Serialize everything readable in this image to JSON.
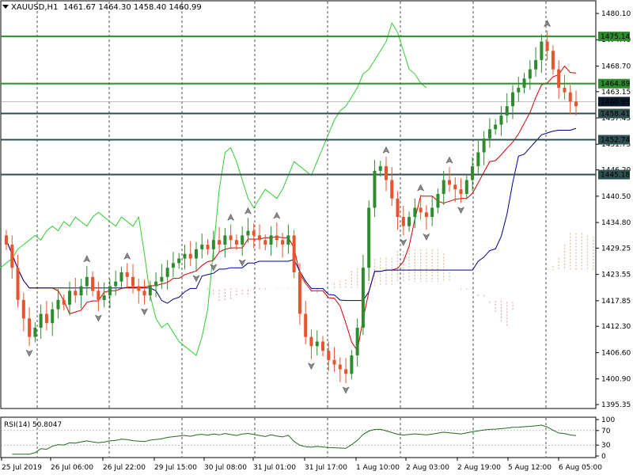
{
  "header": {
    "symbol_label": "XAUUSD,H1",
    "ohlc_label": "1461.67 1464.30 1458.40 1460.99",
    "menu_icon": "triangle-down-icon"
  },
  "price_axis": {
    "ticks": [
      "1480.10",
      "1474.40",
      "1468.70",
      "1463.15",
      "1457.45",
      "1451.75",
      "1446.20",
      "1440.50",
      "1434.80",
      "1429.25",
      "1423.55",
      "1417.85",
      "1412.30",
      "1406.60",
      "1400.90",
      "1395.35"
    ]
  },
  "levels": [
    {
      "value": 1475.14,
      "label": "1475.14",
      "color": "#2e8b2e"
    },
    {
      "value": 1464.89,
      "label": "1464.89",
      "color": "#2e8b2e"
    },
    {
      "value": 1458.41,
      "label": "1458.41",
      "color": "#2f4f4f"
    },
    {
      "value": 1452.74,
      "label": "1452.74",
      "color": "#2f4f4f"
    },
    {
      "value": 1445.18,
      "label": "1445.18",
      "color": "#2f4f4f"
    }
  ],
  "current_price": {
    "value": 1460.99,
    "label": "1460.99"
  },
  "time_axis": {
    "labels": [
      "25 Jul 2019",
      "26 Jul 06:00",
      "26 Jul 22:00",
      "29 Jul 15:00",
      "30 Jul 08:00",
      "31 Jul 01:00",
      "31 Jul 17:00",
      "1 Aug 10:00",
      "2 Aug 03:00",
      "2 Aug 19:00",
      "5 Aug 12:00",
      "6 Aug 05:00"
    ]
  },
  "rsi": {
    "label": "RSI(14) 50.8047",
    "levels": [
      "100",
      "70",
      "30",
      "0"
    ]
  },
  "colors": {
    "bull": "#2e8b2e",
    "bear": "#e8542c",
    "tenkan": "#d00000",
    "kijun": "#00008b",
    "chikou": "#33cc33",
    "kumo_a": "#d2b48c",
    "kumo_b": "#dda0a0",
    "rsi_line": "#1f6b1f",
    "grid": "#000000"
  },
  "chart_data": {
    "type": "candlestick",
    "ylim": [
      1392,
      1482
    ],
    "closes": [
      1430,
      1425,
      1418,
      1414,
      1410,
      1412,
      1415,
      1413,
      1416,
      1418,
      1417,
      1420,
      1419,
      1421,
      1423,
      1420,
      1418,
      1419,
      1421,
      1422,
      1424,
      1423,
      1421,
      1420,
      1419,
      1421,
      1422,
      1423,
      1425,
      1426,
      1427,
      1428,
      1427,
      1429,
      1430,
      1429,
      1431,
      1430,
      1432,
      1431,
      1430,
      1432,
      1433,
      1432,
      1431,
      1430,
      1432,
      1431,
      1430,
      1432,
      1424,
      1415,
      1410,
      1408,
      1409,
      1407,
      1405,
      1404,
      1403,
      1402,
      1406,
      1412,
      1425,
      1438,
      1446,
      1447,
      1444,
      1440,
      1436,
      1434,
      1436,
      1438,
      1437,
      1436,
      1438,
      1441,
      1444,
      1443,
      1442,
      1441,
      1444,
      1447,
      1450,
      1453,
      1455,
      1456,
      1458,
      1460,
      1463,
      1464,
      1466,
      1468,
      1470,
      1474,
      1472,
      1468,
      1464,
      1463,
      1461,
      1460
    ]
  }
}
